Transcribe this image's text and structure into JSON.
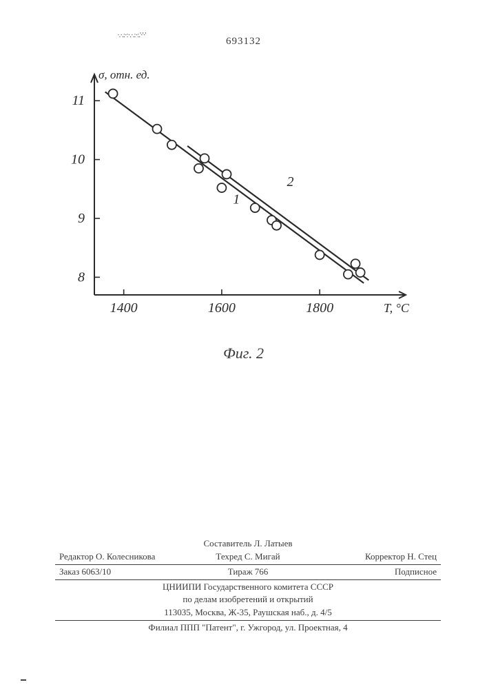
{
  "header": {
    "page_number": "693132",
    "speckle": "·.·.:·:·.·.:·:.'·'·'"
  },
  "chart": {
    "type": "scatter-with-lines",
    "figure_label": "Фиг. 2",
    "y_axis": {
      "label": "σ, отн. ед.",
      "ticks": [
        8,
        9,
        10,
        11
      ],
      "lim": [
        7.7,
        11.4
      ],
      "label_fontsize": 17
    },
    "x_axis": {
      "label": "T, °C",
      "ticks": [
        1400,
        1600,
        1800
      ],
      "lim": [
        1340,
        1970
      ],
      "label_fontsize": 18
    },
    "axis_color": "#2a2a2a",
    "axis_width": 2,
    "tick_length": 8,
    "background": "#ffffff",
    "series": [
      {
        "name": "line-1",
        "label": "1",
        "label_pos": {
          "x": 1630,
          "y": 9.25
        },
        "label_fontsize": 20,
        "style": "line",
        "color": "#2a2a2a",
        "width": 2.2,
        "points": [
          [
            1362,
            11.15
          ],
          [
            1890,
            7.9
          ]
        ]
      },
      {
        "name": "line-2",
        "label": "2",
        "label_pos": {
          "x": 1740,
          "y": 9.55
        },
        "label_fontsize": 20,
        "style": "line",
        "color": "#2a2a2a",
        "width": 2.2,
        "points": [
          [
            1530,
            10.23
          ],
          [
            1900,
            7.95
          ]
        ]
      },
      {
        "name": "data-points",
        "style": "scatter",
        "marker": "circle",
        "marker_size": 6.5,
        "marker_fill": "#ffffff",
        "marker_stroke": "#2a2a2a",
        "marker_stroke_width": 1.8,
        "points": [
          [
            1378,
            11.12
          ],
          [
            1468,
            10.52
          ],
          [
            1498,
            10.25
          ],
          [
            1553,
            9.85
          ],
          [
            1565,
            10.02
          ],
          [
            1600,
            9.52
          ],
          [
            1610,
            9.75
          ],
          [
            1668,
            9.18
          ],
          [
            1702,
            8.97
          ],
          [
            1712,
            8.88
          ],
          [
            1800,
            8.38
          ],
          [
            1858,
            8.05
          ],
          [
            1873,
            8.23
          ],
          [
            1883,
            8.08
          ]
        ]
      }
    ]
  },
  "footer": {
    "composer": "Составитель Л. Латыев",
    "line1_left": "Редактор О. Колесникова",
    "line1_mid": "Техред С. Мигай",
    "line1_right": "Корректор Н. Стец",
    "line2_left": "Заказ 6063/10",
    "line2_mid": "Тираж 766",
    "line2_right": "Подписное",
    "org1": "ЦНИИПИ Государственного комитета СССР",
    "org2": "по делам изобретений и открытий",
    "addr": "113035, Москва, Ж-35, Раушская наб., д. 4/5",
    "branch": "Филиал ППП \"Патент\", г. Ужгород, ул. Проектная, 4"
  }
}
